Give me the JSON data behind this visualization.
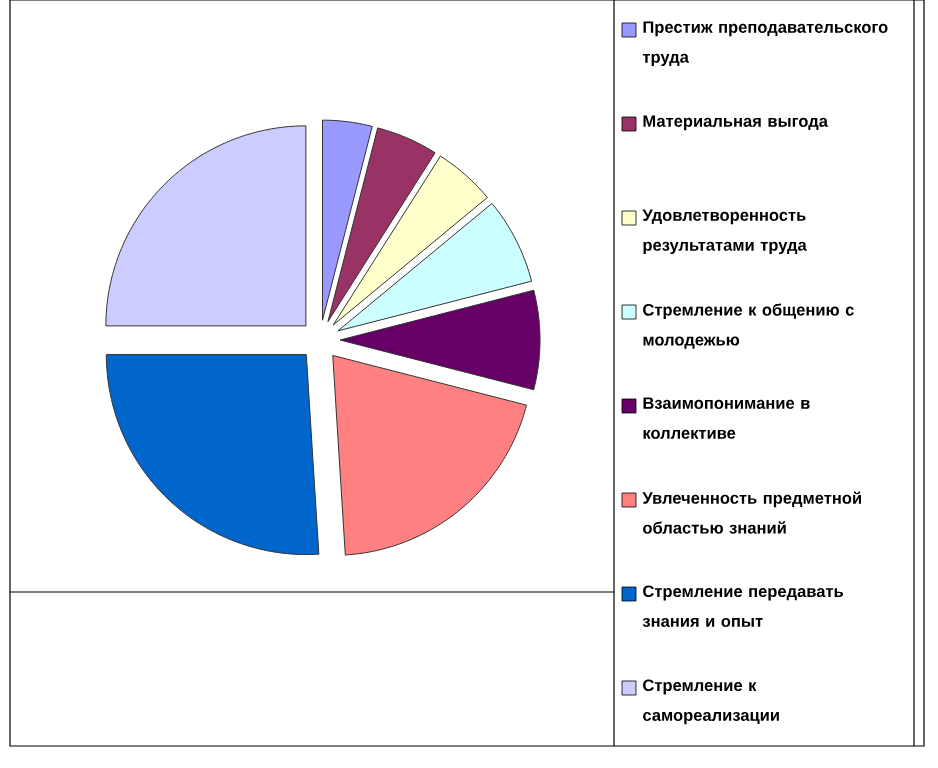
{
  "chart_data": {
    "type": "pie",
    "categories": [
      "Престиж преподавательского труда",
      "Материальная выгода",
      "Удовлетворенность результатами труда",
      "Стремление к общению с молодежью",
      "Взаимопонимание в коллективе",
      "Увлеченность предметной областью знаний",
      "Стремление передавать знания и опыт",
      "Стремление к самореализации"
    ],
    "values": [
      4,
      5,
      5,
      7,
      8,
      20,
      26,
      25
    ],
    "colors": [
      "#9999ff",
      "#993366",
      "#ffffcc",
      "#ccffff",
      "#660066",
      "#ff8080",
      "#0066cc",
      "#ccccff"
    ],
    "legend": "right"
  }
}
